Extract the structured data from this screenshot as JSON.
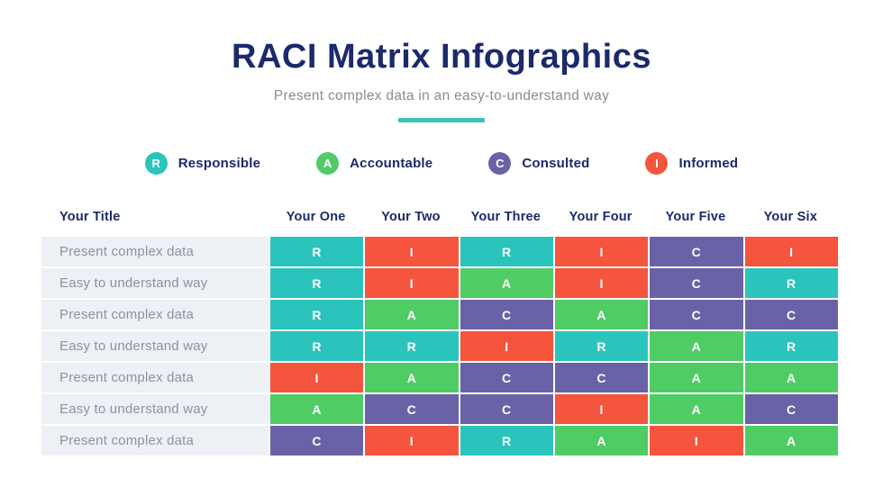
{
  "header": {
    "title": "RACI Matrix Infographics",
    "subtitle": "Present complex data in an easy-to-understand way",
    "accent_color": "#3EC2B7"
  },
  "legend": [
    {
      "letter": "R",
      "label": "Responsible",
      "icon": "responsible-circle-icon"
    },
    {
      "letter": "A",
      "label": "Accountable",
      "icon": "accountable-circle-icon"
    },
    {
      "letter": "C",
      "label": "Consulted",
      "icon": "consulted-circle-icon"
    },
    {
      "letter": "I",
      "label": "Informed",
      "icon": "informed-circle-icon"
    }
  ],
  "raci_colors": {
    "R": "#2BC4BC",
    "A": "#50CC65",
    "C": "#6A62A6",
    "I": "#F5543D"
  },
  "ui_colors": {
    "title_navy": "#1B2A6B",
    "row_label_bg": "#EDF1F6",
    "row_label_text": "#8B939C",
    "subtitle_gray": "#8C8C8C"
  },
  "table": {
    "row_header": "Your Title",
    "columns": [
      "Your One",
      "Your Two",
      "Your Three",
      "Your Four",
      "Your Five",
      "Your Six"
    ],
    "rows": [
      {
        "label": "Present complex data",
        "cells": [
          "R",
          "I",
          "R",
          "I",
          "C",
          "I"
        ]
      },
      {
        "label": "Easy to understand way",
        "cells": [
          "R",
          "I",
          "A",
          "I",
          "C",
          "R"
        ]
      },
      {
        "label": "Present complex data",
        "cells": [
          "R",
          "A",
          "C",
          "A",
          "C",
          "C"
        ]
      },
      {
        "label": "Easy to understand way",
        "cells": [
          "R",
          "R",
          "I",
          "R",
          "A",
          "R"
        ]
      },
      {
        "label": "Present complex data",
        "cells": [
          "I",
          "A",
          "C",
          "C",
          "A",
          "A"
        ]
      },
      {
        "label": "Easy to understand way",
        "cells": [
          "A",
          "C",
          "C",
          "I",
          "A",
          "C"
        ]
      },
      {
        "label": "Present complex data",
        "cells": [
          "C",
          "I",
          "R",
          "A",
          "I",
          "A"
        ]
      }
    ]
  }
}
